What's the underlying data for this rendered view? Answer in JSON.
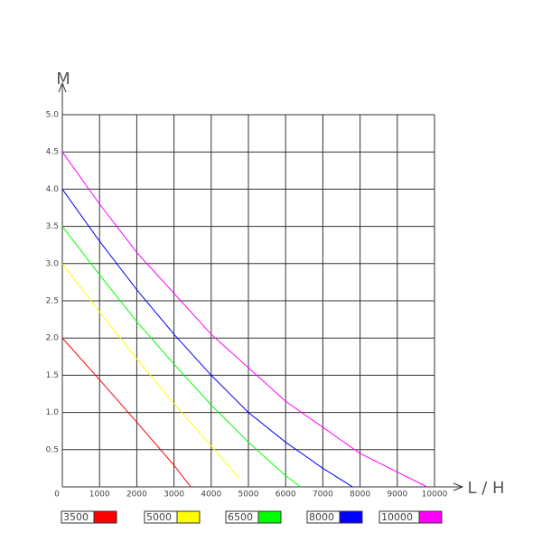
{
  "chart_data": {
    "type": "line",
    "y_label": "M",
    "x_label": "L / H",
    "xlim": [
      0,
      10000
    ],
    "ylim": [
      0,
      5
    ],
    "xticks": [
      0,
      1000,
      2000,
      3000,
      4000,
      5000,
      6000,
      7000,
      8000,
      9000,
      10000
    ],
    "yticks": [
      0.5,
      {
        "value": 1,
        "label": "1.0"
      },
      1.5,
      {
        "value": 2,
        "label": "2.0"
      },
      2.5,
      {
        "value": 3,
        "label": "3.0"
      },
      3.5,
      {
        "value": 4,
        "label": "4.0"
      },
      4.5,
      {
        "value": 5,
        "label": "5.0"
      }
    ],
    "grid": true,
    "series": [
      {
        "name": "3500",
        "color": "#ff0000",
        "x": [
          0,
          1000,
          2000,
          3000,
          3450
        ],
        "values": [
          2.0,
          1.44,
          0.87,
          0.29,
          0
        ]
      },
      {
        "name": "5000",
        "color": "#ffff00",
        "x": [
          0,
          1000,
          2000,
          3000,
          4000,
          4750
        ],
        "values": [
          3.0,
          2.35,
          1.72,
          1.12,
          0.55,
          0.12
        ]
      },
      {
        "name": "6500",
        "color": "#00ff00",
        "x": [
          0,
          1000,
          2000,
          3000,
          4000,
          5000,
          6000,
          6400
        ],
        "values": [
          3.5,
          2.85,
          2.22,
          1.65,
          1.1,
          0.6,
          0.15,
          0
        ]
      },
      {
        "name": "8000",
        "color": "#0000ff",
        "x": [
          0,
          1000,
          2000,
          3000,
          4000,
          5000,
          6000,
          7000,
          7800
        ],
        "values": [
          4.0,
          3.3,
          2.65,
          2.05,
          1.5,
          1.0,
          0.6,
          0.25,
          0
        ]
      },
      {
        "name": "10000",
        "color": "#ff00ff",
        "x": [
          0,
          1000,
          2000,
          3000,
          4000,
          5000,
          6000,
          7000,
          8000,
          9000,
          9800
        ],
        "values": [
          4.5,
          3.8,
          3.15,
          2.6,
          2.05,
          1.6,
          1.15,
          0.8,
          0.45,
          0.2,
          0
        ]
      }
    ]
  }
}
